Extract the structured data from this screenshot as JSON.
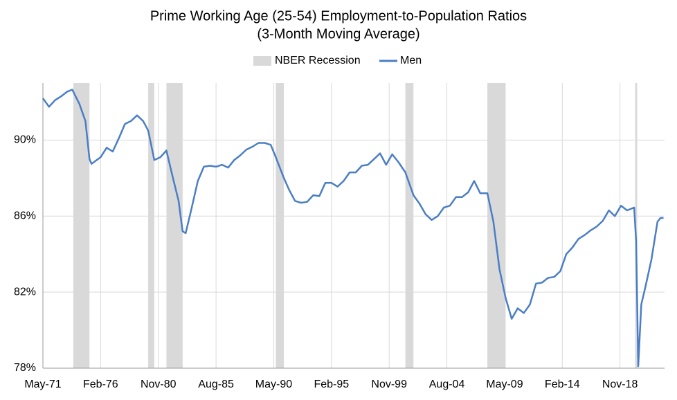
{
  "chart_data": {
    "type": "line",
    "title": "Prime Working Age (25-54) Employment-to-Population  Ratios",
    "subtitle": "(3-Month Moving Average)",
    "recessions": {
      "name": "NBER Recession",
      "color": "#d9d9d9",
      "periods": [
        [
          "Nov-73",
          "Mar-75"
        ],
        [
          "Jan-80",
          "Jul-80"
        ],
        [
          "Jul-81",
          "Nov-82"
        ],
        [
          "Jul-90",
          "Mar-91"
        ],
        [
          "Mar-01",
          "Nov-01"
        ],
        [
          "Dec-07",
          "Jun-09"
        ],
        [
          "Feb-20",
          "Apr-20"
        ]
      ]
    },
    "x": [
      "May-71",
      "Nov-71",
      "May-72",
      "Nov-72",
      "May-73",
      "Oct-73",
      "May-74",
      "Nov-74",
      "Mar-75",
      "May-75",
      "Feb-76",
      "Aug-76",
      "Feb-77",
      "Aug-77",
      "Feb-78",
      "Aug-78",
      "Feb-79",
      "Aug-79",
      "Jan-80",
      "Jul-80",
      "Jan-81",
      "Jul-81",
      "Jan-82",
      "Jul-82",
      "Nov-82",
      "Feb-83",
      "Aug-83",
      "Feb-84",
      "Aug-84",
      "Feb-85",
      "Aug-85",
      "Feb-86",
      "Aug-86",
      "Feb-87",
      "Aug-87",
      "Feb-88",
      "Aug-88",
      "Feb-89",
      "Aug-89",
      "Feb-90",
      "Jul-90",
      "Mar-91",
      "Aug-91",
      "Feb-92",
      "Aug-92",
      "Feb-93",
      "Aug-93",
      "Feb-94",
      "Aug-94",
      "Feb-95",
      "Aug-95",
      "Feb-96",
      "Aug-96",
      "Feb-97",
      "Aug-97",
      "Feb-98",
      "Aug-98",
      "Feb-99",
      "Aug-99",
      "Feb-00",
      "Aug-00",
      "Mar-01",
      "Nov-01",
      "May-02",
      "Nov-02",
      "May-03",
      "Nov-03",
      "May-04",
      "Nov-04",
      "May-05",
      "Nov-05",
      "May-06",
      "Nov-06",
      "May-07",
      "Dec-07",
      "Jun-08",
      "Dec-08",
      "Jun-09",
      "Dec-09",
      "Jun-10",
      "Dec-10",
      "Jun-11",
      "Dec-11",
      "Jun-12",
      "Dec-12",
      "Jun-13",
      "Dec-13",
      "Jun-14",
      "Dec-14",
      "Jun-15",
      "Dec-15",
      "Jun-16",
      "Dec-16",
      "Jun-17",
      "Dec-17",
      "Jun-18",
      "Dec-18",
      "Jun-19",
      "Jan-20",
      "Mar-20",
      "May-20",
      "Aug-20",
      "Dec-20",
      "Jun-21",
      "Dec-21",
      "Mar-22",
      "Jun-22"
    ],
    "series": [
      {
        "name": "Men",
        "color": "#4a7ec4",
        "values": [
          92.2,
          91.75,
          92.1,
          92.3,
          92.55,
          92.65,
          91.9,
          91.0,
          89.0,
          88.75,
          89.1,
          89.6,
          89.4,
          90.1,
          90.85,
          91.0,
          91.3,
          91.0,
          90.5,
          88.95,
          89.1,
          89.45,
          88.1,
          86.8,
          85.2,
          85.1,
          86.45,
          87.85,
          88.6,
          88.65,
          88.6,
          88.7,
          88.55,
          88.95,
          89.2,
          89.5,
          89.65,
          89.85,
          89.85,
          89.75,
          89.1,
          88.0,
          87.4,
          86.8,
          86.7,
          86.75,
          87.1,
          87.05,
          87.75,
          87.75,
          87.55,
          87.85,
          88.3,
          88.3,
          88.65,
          88.7,
          89.0,
          89.3,
          88.7,
          89.25,
          88.85,
          88.3,
          87.1,
          86.65,
          86.1,
          85.8,
          86.0,
          86.45,
          86.55,
          87.0,
          87.0,
          87.25,
          87.85,
          87.2,
          87.2,
          85.7,
          83.2,
          81.7,
          80.6,
          81.15,
          80.9,
          81.35,
          82.45,
          82.5,
          82.75,
          82.8,
          83.1,
          84.0,
          84.35,
          84.8,
          85.0,
          85.25,
          85.45,
          85.75,
          86.3,
          86.0,
          86.55,
          86.3,
          86.45,
          84.65,
          78.1,
          81.35,
          82.25,
          83.7,
          85.7,
          85.9,
          85.9
        ]
      }
    ],
    "xlim": [
      "May-71",
      "Jul-22"
    ],
    "xticks": [
      "May-71",
      "Feb-76",
      "Nov-80",
      "Aug-85",
      "May-90",
      "Feb-95",
      "Nov-99",
      "Aug-04",
      "May-09",
      "Feb-14",
      "Nov-18"
    ],
    "ylim": [
      78,
      93
    ],
    "yticks": [
      {
        "value": 78,
        "label": "78%"
      },
      {
        "value": 82,
        "label": "82%"
      },
      {
        "value": 86,
        "label": "86%"
      },
      {
        "value": 90,
        "label": "90%"
      }
    ],
    "grid": true,
    "legend": "top"
  }
}
